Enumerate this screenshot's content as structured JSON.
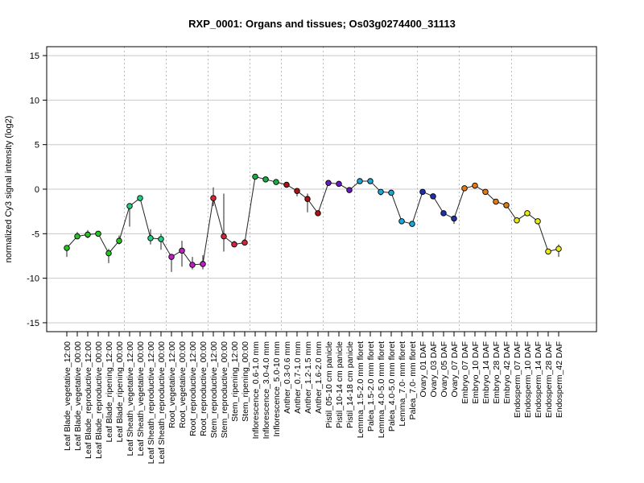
{
  "chart_data": {
    "type": "line",
    "title": "RXP_0001: Organs and tissues; Os03g0274400_31113",
    "xlabel": "",
    "ylabel": "normalized Cy3 signal intensity (log2)",
    "ylim": [
      -16,
      16
    ],
    "yticks": [
      -15,
      -10,
      -5,
      0,
      5,
      10,
      15
    ],
    "grid": "horizontal at y ticks; dotted vertical separators between tissue groups",
    "categories": [
      "Leaf Blade_vegetative_12:00",
      "Leaf Blade_vegetative_00:00",
      "Leaf Blade_reproductive_12:00",
      "Leaf Blade_reproductive_00:00",
      "Leaf Blade_ripening_12:00",
      "Leaf Blade_ripening_00:00",
      "Leaf Sheath_vegetative_12:00",
      "Leaf Sheath_vegetative_00:00",
      "Leaf Sheath_reproductive_12:00",
      "Leaf Sheath_reproductive_00:00",
      "Root_vegetative_12:00",
      "Root_vegetative_00:00",
      "Root_reproductive_12:00",
      "Root_reproductive_00:00",
      "Stem_reproductive_12:00",
      "Stem_reproductive_00:00",
      "Stem_ripening_12:00",
      "Stem_ripening_00:00",
      "Inflorescence_0.6-1.0 mm",
      "Inflorescence_3.0-4.0 mm",
      "Inflorescence_5.0-10 mm",
      "Anther_0.3-0.6 mm",
      "Anther_0.7-1.0 mm",
      "Anther_1.2-1.5 mm",
      "Anther_1.6-2.0 mm",
      "Pistil_05-10 cm panicle",
      "Pistil_10-14 cm panicle",
      "Pistil_14-18 cm panicle",
      "Lemma_1.5-2.0 mm floret",
      "Palea_1.5-2.0 mm floret",
      "Lemma_4.0-5.0 mm floret",
      "Palea_4.0-5.0 mm floret",
      "Lemma_7.0- mm floret",
      "Palea_7.0- mm floret",
      "Ovary_01 DAF",
      "Ovary_03 DAF",
      "Ovary_05 DAF",
      "Ovary_07 DAF",
      "Embryo_07 DAF",
      "Embryo_10 DAF",
      "Embryo_14 DAF",
      "Embryo_28 DAF",
      "Embryo_42 DAF",
      "Endosperm_07 DAF",
      "Endosperm_10 DAF",
      "Endosperm_14 DAF",
      "Endosperm_28 DAF",
      "Endosperm_42 DAF"
    ],
    "values": [
      -6.6,
      -5.3,
      -5.1,
      -5.0,
      -7.2,
      -5.8,
      -1.9,
      -1.0,
      -5.5,
      -5.6,
      -7.6,
      -6.9,
      -8.5,
      -8.4,
      -1.0,
      -5.3,
      -6.2,
      -6.0,
      1.4,
      1.1,
      0.8,
      0.5,
      -0.2,
      -1.1,
      -2.7,
      0.7,
      0.6,
      -0.1,
      0.9,
      0.9,
      -0.3,
      -0.4,
      -3.6,
      -3.9,
      -0.3,
      -0.8,
      -2.7,
      -3.3,
      0.1,
      0.4,
      -0.3,
      -1.4,
      -1.8,
      -3.5,
      -2.7,
      -3.6,
      -7.0,
      -6.7
    ],
    "error_low": [
      -7.6,
      -5.6,
      -5.5,
      -5.3,
      -8.3,
      -6.2,
      -4.2,
      -1.3,
      -6.2,
      -6.8,
      -9.3,
      -8.7,
      -9.0,
      -9.0,
      -1.9,
      -7.0,
      -6.5,
      -6.2,
      1.2,
      0.9,
      0.5,
      0.3,
      -0.8,
      -2.6,
      -2.9,
      0.5,
      0.4,
      -0.3,
      0.7,
      0.7,
      -0.7,
      -0.6,
      -3.8,
      -4.1,
      -0.5,
      -1.0,
      -3.0,
      -3.9,
      -0.1,
      0.2,
      -0.5,
      -1.6,
      -2.0,
      -3.7,
      -2.9,
      -3.8,
      -7.2,
      -7.6
    ],
    "error_high": [
      -6.3,
      -4.8,
      -4.6,
      -4.7,
      -6.7,
      -5.2,
      -1.7,
      -0.8,
      -4.5,
      -5.0,
      -7.3,
      -5.8,
      -7.6,
      -7.4,
      0.2,
      -0.5,
      -5.8,
      -5.6,
      1.6,
      1.3,
      1.0,
      0.7,
      0.1,
      -0.5,
      -2.4,
      0.9,
      0.8,
      0.1,
      1.1,
      1.1,
      -0.1,
      -0.1,
      -3.4,
      -3.6,
      -0.1,
      -0.6,
      -2.4,
      -3.0,
      0.3,
      0.6,
      -0.1,
      -1.2,
      -1.6,
      -3.3,
      -2.5,
      -3.4,
      -6.8,
      -6.2
    ],
    "colors": [
      "#22c522",
      "#22c522",
      "#22c522",
      "#22c522",
      "#22c522",
      "#22c522",
      "#1fd07e",
      "#1fd07e",
      "#1fd07e",
      "#1fd07e",
      "#c21bc9",
      "#c21bc9",
      "#c21bc9",
      "#c21bc9",
      "#d6243a",
      "#d6243a",
      "#d6243a",
      "#d6243a",
      "#1bab44",
      "#1bab44",
      "#1bab44",
      "#b01010",
      "#b01010",
      "#b01010",
      "#b01010",
      "#6a1ab8",
      "#6a1ab8",
      "#6a1ab8",
      "#1aa8d8",
      "#1aa8d8",
      "#1aa8d8",
      "#1aa8d8",
      "#1aa8d8",
      "#1aa8d8",
      "#2030b0",
      "#2030b0",
      "#2030b0",
      "#2030b0",
      "#e07a14",
      "#e07a14",
      "#e07a14",
      "#e07a14",
      "#e07a14",
      "#e8e814",
      "#e8e814",
      "#e8e814",
      "#e8e814",
      "#e8e814"
    ],
    "group_separators_after_index": [
      5,
      9,
      13,
      17,
      20,
      24,
      27,
      33,
      37,
      42
    ],
    "legend": "none"
  }
}
